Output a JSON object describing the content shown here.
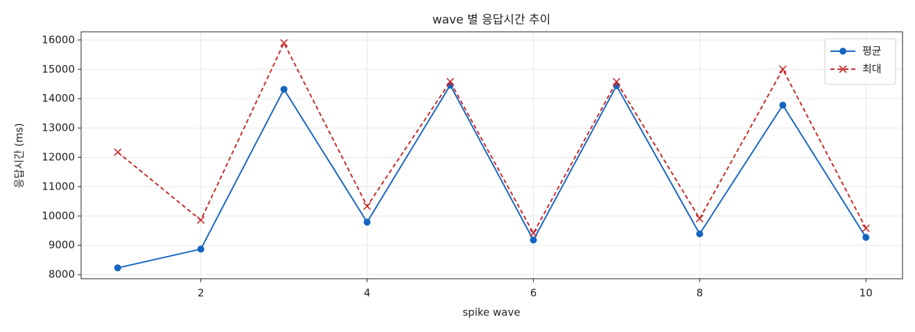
{
  "chart_data": {
    "type": "line",
    "title": "wave 별 응답시간 추이",
    "x_label": "spike wave",
    "y_label": "응답시간 (ms)",
    "x": [
      1,
      2,
      3,
      4,
      5,
      6,
      7,
      8,
      9,
      10
    ],
    "series": [
      {
        "name": "평균",
        "color": "#1565c0",
        "marker": "o",
        "dash": false,
        "values": [
          8230,
          8870,
          14320,
          9790,
          14460,
          9180,
          14440,
          9390,
          13780,
          9270
        ]
      },
      {
        "name": "최대",
        "color": "#c62828",
        "marker": "x",
        "dash": true,
        "values": [
          12175,
          9860,
          15900,
          10335,
          14580,
          9415,
          14580,
          9910,
          15005,
          9580
        ]
      }
    ],
    "xlim": [
      0.56,
      10.44
    ],
    "xticks": [
      2,
      4,
      6,
      8,
      10
    ],
    "ylim": [
      7860,
      16280
    ],
    "yticks": [
      8000,
      9000,
      10000,
      11000,
      12000,
      13000,
      14000,
      15000,
      16000
    ],
    "grid": true,
    "legend": "upper right"
  }
}
